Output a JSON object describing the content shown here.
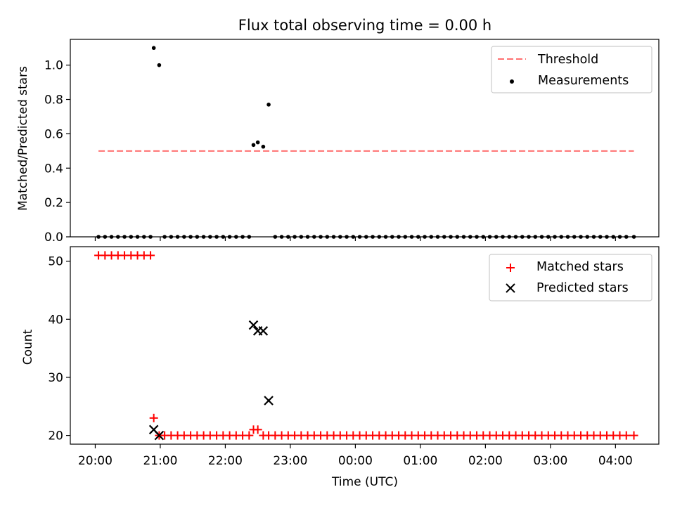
{
  "chart_data": [
    {
      "type": "scatter",
      "title": "Flux total observing time = 0.00 h",
      "xlabel": "",
      "ylabel": "Matched/Predicted stars",
      "ylim": [
        0,
        1.15
      ],
      "yticks": [
        "0.0",
        "0.2",
        "0.4",
        "0.6",
        "0.8",
        "1.0"
      ],
      "ytick_values": [
        0,
        0.2,
        0.4,
        0.6,
        0.8,
        1.0
      ],
      "legend_position": "top-right",
      "threshold": {
        "name": "Threshold",
        "value": 0.5,
        "x_start": "20:03",
        "x_end": "04:17",
        "color": "#ff7070",
        "style": "dashed"
      },
      "series": [
        {
          "name": "Measurements",
          "marker": "dot",
          "color": "#000000",
          "points": [
            [
              "20:03",
              0
            ],
            [
              "20:09",
              0
            ],
            [
              "20:15",
              0
            ],
            [
              "20:21",
              0
            ],
            [
              "20:27",
              0
            ],
            [
              "20:33",
              0
            ],
            [
              "20:39",
              0
            ],
            [
              "20:45",
              0
            ],
            [
              "20:51",
              0
            ],
            [
              "20:54",
              1.1
            ],
            [
              "20:59",
              1.0
            ],
            [
              "21:04",
              0
            ],
            [
              "21:10",
              0
            ],
            [
              "21:16",
              0
            ],
            [
              "21:22",
              0
            ],
            [
              "21:28",
              0
            ],
            [
              "21:34",
              0
            ],
            [
              "21:40",
              0
            ],
            [
              "21:46",
              0
            ],
            [
              "21:52",
              0
            ],
            [
              "21:58",
              0
            ],
            [
              "22:04",
              0
            ],
            [
              "22:10",
              0
            ],
            [
              "22:16",
              0
            ],
            [
              "22:22",
              0
            ],
            [
              "22:26",
              0.535
            ],
            [
              "22:30",
              0.55
            ],
            [
              "22:35",
              0.525
            ],
            [
              "22:40",
              0.77
            ],
            [
              "22:46",
              0
            ],
            [
              "22:52",
              0
            ],
            [
              "22:58",
              0
            ],
            [
              "23:04",
              0
            ],
            [
              "23:10",
              0
            ],
            [
              "23:16",
              0
            ],
            [
              "23:22",
              0
            ],
            [
              "23:28",
              0
            ],
            [
              "23:34",
              0
            ],
            [
              "23:40",
              0
            ],
            [
              "23:46",
              0
            ],
            [
              "23:52",
              0
            ],
            [
              "23:58",
              0
            ],
            [
              "00:04",
              0
            ],
            [
              "00:10",
              0
            ],
            [
              "00:16",
              0
            ],
            [
              "00:22",
              0
            ],
            [
              "00:28",
              0
            ],
            [
              "00:34",
              0
            ],
            [
              "00:40",
              0
            ],
            [
              "00:46",
              0
            ],
            [
              "00:52",
              0
            ],
            [
              "00:58",
              0
            ],
            [
              "01:04",
              0
            ],
            [
              "01:10",
              0
            ],
            [
              "01:16",
              0
            ],
            [
              "01:22",
              0
            ],
            [
              "01:28",
              0
            ],
            [
              "01:34",
              0
            ],
            [
              "01:40",
              0
            ],
            [
              "01:46",
              0
            ],
            [
              "01:52",
              0
            ],
            [
              "01:58",
              0
            ],
            [
              "02:04",
              0
            ],
            [
              "02:10",
              0
            ],
            [
              "02:16",
              0
            ],
            [
              "02:22",
              0
            ],
            [
              "02:28",
              0
            ],
            [
              "02:34",
              0
            ],
            [
              "02:40",
              0
            ],
            [
              "02:46",
              0
            ],
            [
              "02:52",
              0
            ],
            [
              "02:58",
              0
            ],
            [
              "03:04",
              0
            ],
            [
              "03:10",
              0
            ],
            [
              "03:16",
              0
            ],
            [
              "03:22",
              0
            ],
            [
              "03:28",
              0
            ],
            [
              "03:34",
              0
            ],
            [
              "03:40",
              0
            ],
            [
              "03:46",
              0
            ],
            [
              "03:52",
              0
            ],
            [
              "03:58",
              0
            ],
            [
              "04:04",
              0
            ],
            [
              "04:10",
              0
            ],
            [
              "04:17",
              0
            ]
          ]
        }
      ]
    },
    {
      "type": "scatter",
      "title": "",
      "xlabel": "Time (UTC)",
      "ylabel": "Count",
      "ylim": [
        18.5,
        52.5
      ],
      "yticks": [
        "20",
        "30",
        "40",
        "50"
      ],
      "ytick_values": [
        20,
        30,
        40,
        50
      ],
      "xticks": [
        "20:00",
        "21:00",
        "22:00",
        "23:00",
        "00:00",
        "01:00",
        "02:00",
        "03:00",
        "04:00"
      ],
      "xlim": [
        "19:37",
        "04:40"
      ],
      "legend_position": "top-right",
      "series": [
        {
          "name": "Matched stars",
          "marker": "plus",
          "color": "#ff0000",
          "points": [
            [
              "20:03",
              51
            ],
            [
              "20:09",
              51
            ],
            [
              "20:15",
              51
            ],
            [
              "20:21",
              51
            ],
            [
              "20:27",
              51
            ],
            [
              "20:33",
              51
            ],
            [
              "20:39",
              51
            ],
            [
              "20:45",
              51
            ],
            [
              "20:51",
              51
            ],
            [
              "20:54",
              23
            ],
            [
              "20:59",
              20
            ],
            [
              "21:04",
              20
            ],
            [
              "21:10",
              20
            ],
            [
              "21:16",
              20
            ],
            [
              "21:22",
              20
            ],
            [
              "21:28",
              20
            ],
            [
              "21:34",
              20
            ],
            [
              "21:40",
              20
            ],
            [
              "21:46",
              20
            ],
            [
              "21:52",
              20
            ],
            [
              "21:58",
              20
            ],
            [
              "22:04",
              20
            ],
            [
              "22:10",
              20
            ],
            [
              "22:16",
              20
            ],
            [
              "22:22",
              20
            ],
            [
              "22:26",
              21
            ],
            [
              "22:30",
              21
            ],
            [
              "22:35",
              20
            ],
            [
              "22:40",
              20
            ],
            [
              "22:46",
              20
            ],
            [
              "22:52",
              20
            ],
            [
              "22:58",
              20
            ],
            [
              "23:04",
              20
            ],
            [
              "23:10",
              20
            ],
            [
              "23:16",
              20
            ],
            [
              "23:22",
              20
            ],
            [
              "23:28",
              20
            ],
            [
              "23:34",
              20
            ],
            [
              "23:40",
              20
            ],
            [
              "23:46",
              20
            ],
            [
              "23:52",
              20
            ],
            [
              "23:58",
              20
            ],
            [
              "00:04",
              20
            ],
            [
              "00:10",
              20
            ],
            [
              "00:16",
              20
            ],
            [
              "00:22",
              20
            ],
            [
              "00:28",
              20
            ],
            [
              "00:34",
              20
            ],
            [
              "00:40",
              20
            ],
            [
              "00:46",
              20
            ],
            [
              "00:52",
              20
            ],
            [
              "00:58",
              20
            ],
            [
              "01:04",
              20
            ],
            [
              "01:10",
              20
            ],
            [
              "01:16",
              20
            ],
            [
              "01:22",
              20
            ],
            [
              "01:28",
              20
            ],
            [
              "01:34",
              20
            ],
            [
              "01:40",
              20
            ],
            [
              "01:46",
              20
            ],
            [
              "01:52",
              20
            ],
            [
              "01:58",
              20
            ],
            [
              "02:04",
              20
            ],
            [
              "02:10",
              20
            ],
            [
              "02:16",
              20
            ],
            [
              "02:22",
              20
            ],
            [
              "02:28",
              20
            ],
            [
              "02:34",
              20
            ],
            [
              "02:40",
              20
            ],
            [
              "02:46",
              20
            ],
            [
              "02:52",
              20
            ],
            [
              "02:58",
              20
            ],
            [
              "03:04",
              20
            ],
            [
              "03:10",
              20
            ],
            [
              "03:16",
              20
            ],
            [
              "03:22",
              20
            ],
            [
              "03:28",
              20
            ],
            [
              "03:34",
              20
            ],
            [
              "03:40",
              20
            ],
            [
              "03:46",
              20
            ],
            [
              "03:52",
              20
            ],
            [
              "03:58",
              20
            ],
            [
              "04:04",
              20
            ],
            [
              "04:10",
              20
            ],
            [
              "04:17",
              20
            ]
          ]
        },
        {
          "name": "Predicted stars",
          "marker": "x",
          "color": "#000000",
          "points": [
            [
              "20:54",
              21
            ],
            [
              "20:59",
              20
            ],
            [
              "22:26",
              39
            ],
            [
              "22:30",
              38
            ],
            [
              "22:35",
              38
            ],
            [
              "22:40",
              26
            ]
          ]
        }
      ]
    }
  ]
}
